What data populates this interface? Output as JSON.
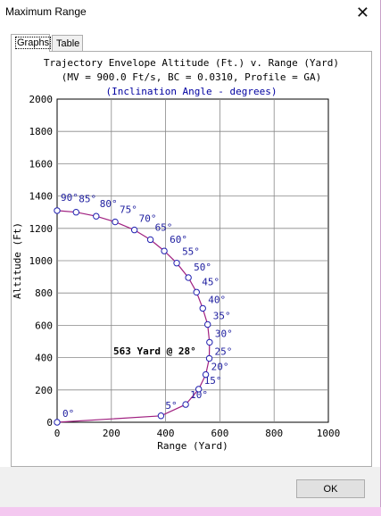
{
  "window": {
    "title": "Maximum Range",
    "close_glyph": "✕"
  },
  "tabs": [
    {
      "label": "Graphs",
      "active": true
    },
    {
      "label": "Table",
      "active": false
    }
  ],
  "chart_title": {
    "line1": "Trajectory Envelope Altitude (Ft.) v. Range (Yard)",
    "line2": "(MV = 900.0 Ft/s, BC = 0.0310, Profile = GA)",
    "line3": "(Inclination Angle - degrees)"
  },
  "chart_data": {
    "type": "line",
    "title": "Trajectory Envelope Altitude (Ft.) v. Range (Yard)",
    "xlabel": "Range (Yard)",
    "ylabel": "Altitude (Ft)",
    "xlim": [
      0,
      1000
    ],
    "ylim": [
      0,
      2000
    ],
    "xticks": [
      "0",
      "200",
      "400",
      "600",
      "800",
      "1000"
    ],
    "yticks": [
      "0",
      "200",
      "400",
      "600",
      "800",
      "1000",
      "1200",
      "1400",
      "1600",
      "1800",
      "2000"
    ],
    "grid": true,
    "line_color": "#a02080",
    "marker_color": "#2020b0",
    "label_color": "#2020a0",
    "points": [
      {
        "x": 0,
        "y": 0,
        "label": "0°"
      },
      {
        "x": 383,
        "y": 40,
        "label": "5°"
      },
      {
        "x": 474,
        "y": 110,
        "label": "10°"
      },
      {
        "x": 522,
        "y": 205,
        "label": "15°"
      },
      {
        "x": 548,
        "y": 295,
        "label": "20°"
      },
      {
        "x": 561,
        "y": 395,
        "label": "25°"
      },
      {
        "x": 562,
        "y": 495,
        "label": "30°"
      },
      {
        "x": 555,
        "y": 605,
        "label": "35°"
      },
      {
        "x": 537,
        "y": 705,
        "label": "40°"
      },
      {
        "x": 514,
        "y": 805,
        "label": "45°"
      },
      {
        "x": 484,
        "y": 895,
        "label": "50°"
      },
      {
        "x": 441,
        "y": 985,
        "label": "55°"
      },
      {
        "x": 395,
        "y": 1060,
        "label": "60°"
      },
      {
        "x": 344,
        "y": 1130,
        "label": "65°"
      },
      {
        "x": 285,
        "y": 1190,
        "label": "70°"
      },
      {
        "x": 214,
        "y": 1240,
        "label": "75°"
      },
      {
        "x": 144,
        "y": 1275,
        "label": "80°"
      },
      {
        "x": 70,
        "y": 1300,
        "label": "85°"
      },
      {
        "x": 0,
        "y": 1310,
        "label": "90°"
      }
    ],
    "annotation": "563 Yard @ 28°"
  },
  "footer": {
    "ok_label": "OK"
  }
}
